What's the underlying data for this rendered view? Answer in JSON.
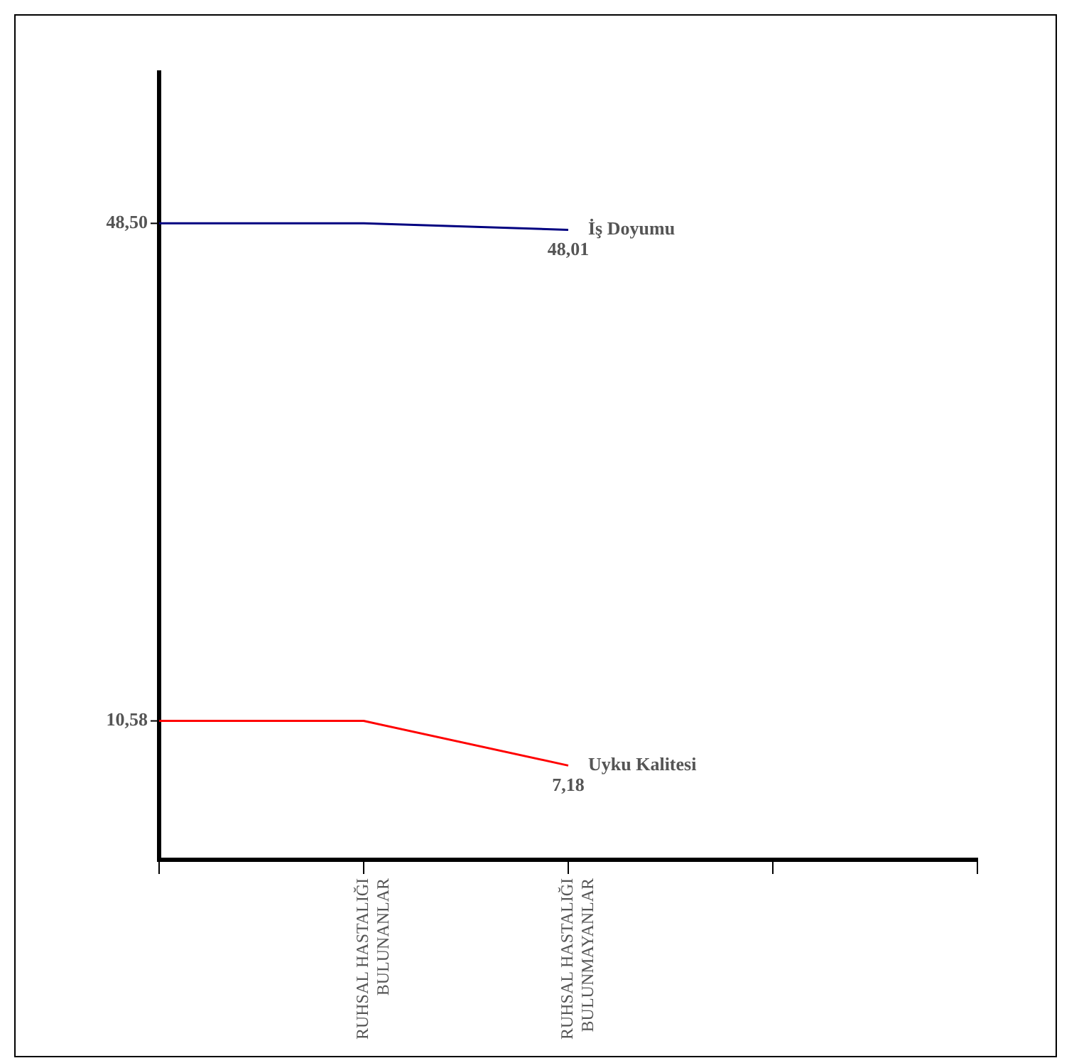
{
  "chart_data": {
    "type": "line",
    "categories": [
      null,
      "RUHSAL HASTALIĞI BULUNANLAR",
      "RUHSAL HASTALIĞI BULUNMAYANLAR",
      null,
      null
    ],
    "series": [
      {
        "name": "İş Doyumu",
        "color": "#000080",
        "values": [
          48.5,
          48.5,
          48.01,
          null,
          null
        ],
        "value_labels": [
          "48,50",
          null,
          "48,01",
          null,
          null
        ]
      },
      {
        "name": "Uyku Kalitesi",
        "color": "#ff0000",
        "values": [
          10.58,
          10.58,
          7.18,
          null,
          null
        ],
        "value_labels": [
          "10,58",
          null,
          "7,18",
          null,
          null
        ]
      }
    ],
    "legend": false,
    "marker": "none",
    "grid": false,
    "line_style": "solid"
  }
}
